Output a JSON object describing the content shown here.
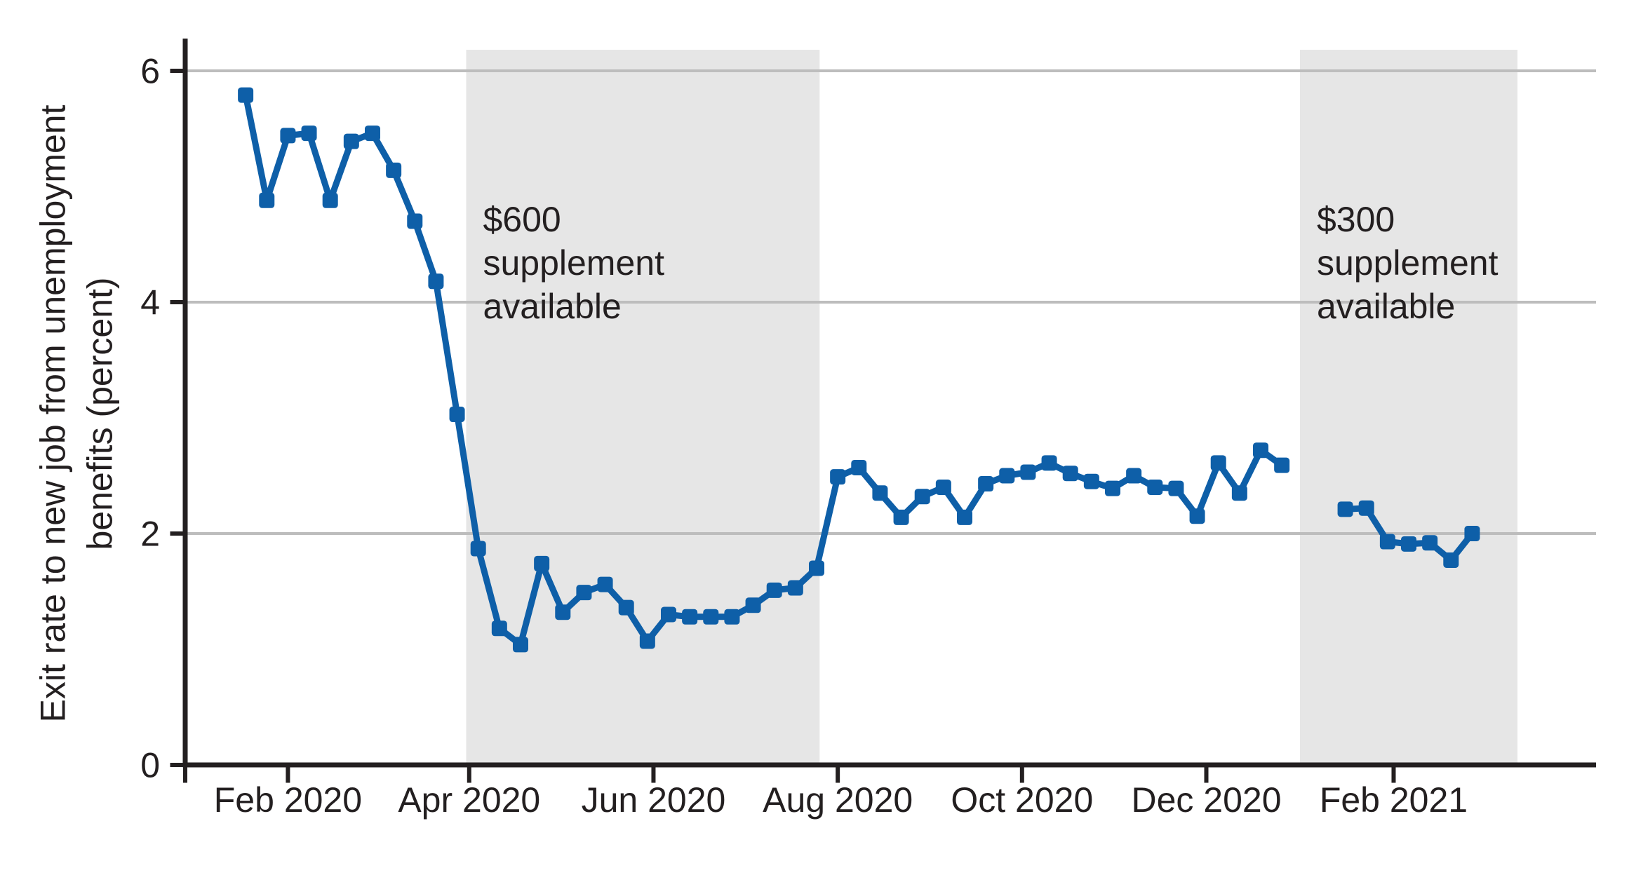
{
  "chart_data": {
    "type": "line",
    "title": "",
    "ylabel_lines": [
      "Exit rate to new job from unemployment",
      "benefits (percent)"
    ],
    "xlabel": "",
    "ylim": [
      0,
      6.28
    ],
    "xlim": [
      "2019-12-29",
      "2021-04-09"
    ],
    "y_ticks": [
      0,
      2,
      4,
      6
    ],
    "x_ticks": [
      {
        "label": "Feb 2020",
        "date": "2020-02-01"
      },
      {
        "label": "Apr 2020",
        "date": "2020-04-01"
      },
      {
        "label": "Jun 2020",
        "date": "2020-06-01"
      },
      {
        "label": "Aug 2020",
        "date": "2020-08-01"
      },
      {
        "label": "Oct 2020",
        "date": "2020-10-01"
      },
      {
        "label": "Dec 2020",
        "date": "2020-12-01"
      },
      {
        "label": "Feb 2021",
        "date": "2021-02-01"
      }
    ],
    "grid": "horizontal gridlines at 2, 4, 6",
    "legend": "none",
    "marker": "square",
    "series": [
      {
        "start_week_ending": "2020-01-18",
        "frequency": "weekly",
        "values": [
          5.79,
          4.88,
          5.44,
          5.46,
          4.88,
          5.39,
          5.46,
          5.14,
          4.7,
          4.18,
          3.03,
          1.87,
          1.18,
          1.04,
          1.74,
          1.32,
          1.49,
          1.56,
          1.36,
          1.07,
          1.3,
          1.28,
          1.28,
          1.28,
          1.38,
          1.51,
          1.53,
          1.7,
          2.49,
          2.57,
          2.35,
          2.14,
          2.32,
          2.4,
          2.14,
          2.43,
          2.5,
          2.53,
          2.61,
          2.52,
          2.45,
          2.39,
          2.5,
          2.4,
          2.39,
          2.15,
          2.61,
          2.35,
          2.72,
          2.59
        ]
      },
      {
        "start_week_ending": "2021-01-16",
        "frequency": "weekly",
        "values": [
          2.21,
          2.22,
          1.93,
          1.91,
          1.92,
          1.77,
          2.0
        ]
      }
    ],
    "annotations": [
      {
        "lines": [
          "$600",
          "supplement",
          "available"
        ],
        "region_start": "2020-03-31",
        "region_end": "2020-07-26"
      },
      {
        "lines": [
          "$300",
          "supplement",
          "available"
        ],
        "region_start": "2021-01-01",
        "region_end": "2021-03-14"
      }
    ],
    "colors": {
      "line": "#0e5fa8",
      "shade": "#e6e6e6",
      "gridline": "#bdbdbd",
      "axis": "#231f20",
      "text": "#231f20",
      "background": "#ffffff"
    }
  }
}
